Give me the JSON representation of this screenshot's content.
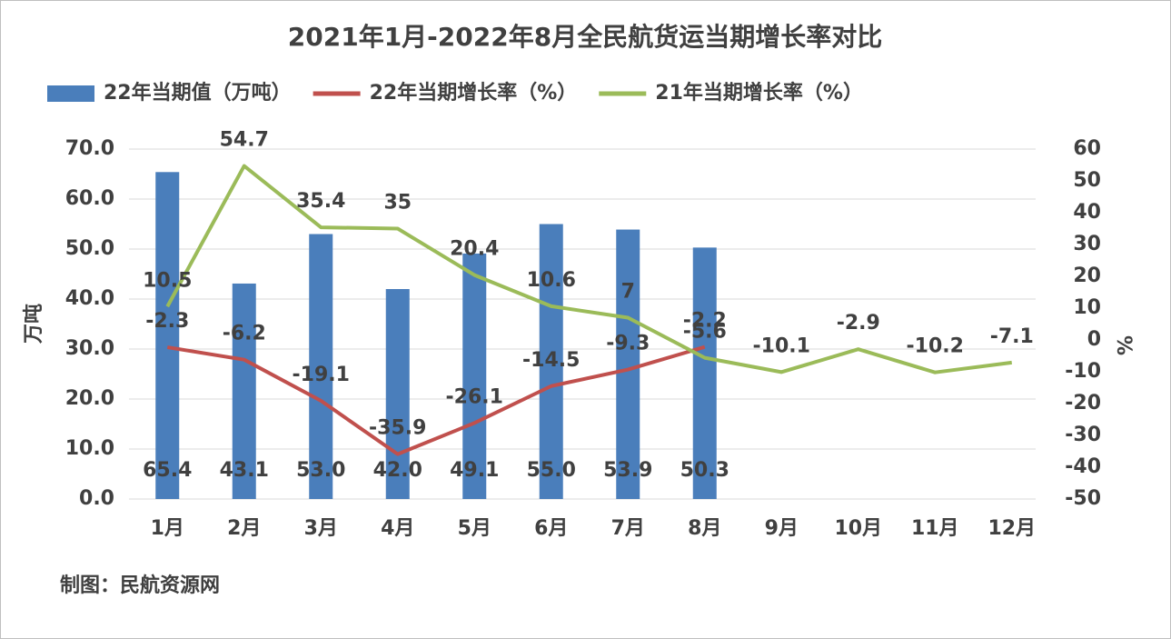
{
  "chart_data": {
    "type": "bar-line",
    "title": "2021年1月-2022年8月全民航货运当期增长率对比",
    "source": "制图：民航资源网",
    "ylabel": "万吨",
    "y2label": "%",
    "categories": [
      "1月",
      "2月",
      "3月",
      "4月",
      "5月",
      "6月",
      "7月",
      "8月",
      "9月",
      "10月",
      "11月",
      "12月"
    ],
    "series": [
      {
        "name": "22年当期值（万吨）",
        "type": "bar",
        "color": "#4a7ebb",
        "values": [
          65.4,
          43.1,
          53.0,
          42.0,
          49.1,
          55.0,
          53.9,
          50.3,
          null,
          null,
          null,
          null
        ],
        "value_labels": [
          "65.4",
          "43.1",
          "53.0",
          "42.0",
          "49.1",
          "55.0",
          "53.9",
          "50.3",
          null,
          null,
          null,
          null
        ]
      },
      {
        "name": "22年当期增长率（%）",
        "type": "line",
        "axis": "y2",
        "color": "#c0504d",
        "values": [
          -2.3,
          -6.2,
          -19.1,
          -35.9,
          -26.1,
          -14.5,
          -9.3,
          -2.2,
          null,
          null,
          null,
          null
        ]
      },
      {
        "name": "21年当期增长率（%）",
        "type": "line",
        "axis": "y2",
        "color": "#9bbb59",
        "values": [
          10.5,
          54.7,
          35.4,
          35,
          20.4,
          10.6,
          7,
          -5.6,
          -10.1,
          -2.9,
          -10.2,
          -7.1
        ]
      }
    ],
    "ylim": [
      0,
      70
    ],
    "yticks": [
      {
        "value": 0,
        "label": "0.0"
      },
      {
        "value": 10,
        "label": "10.0"
      },
      {
        "value": 20,
        "label": "20.0"
      },
      {
        "value": 30,
        "label": "30.0"
      },
      {
        "value": 40,
        "label": "40.0"
      },
      {
        "value": 50,
        "label": "50.0"
      },
      {
        "value": 60,
        "label": "60.0"
      },
      {
        "value": 70,
        "label": "70.0"
      }
    ],
    "y2lim": [
      -50,
      60
    ],
    "y2ticks": [
      -50,
      -40,
      -30,
      -20,
      -10,
      0,
      10,
      20,
      30,
      40,
      50,
      60
    ],
    "grid": true,
    "legend": "top"
  }
}
